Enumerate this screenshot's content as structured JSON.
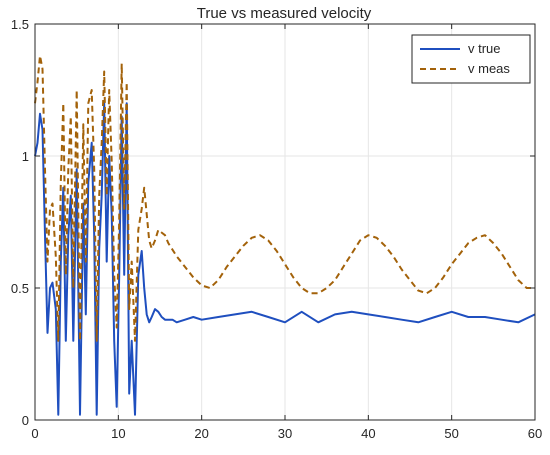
{
  "chart_data": {
    "type": "line",
    "title": "True vs measured velocity",
    "xlabel": "",
    "ylabel": "",
    "xlim": [
      0,
      60
    ],
    "ylim": [
      0,
      1.5
    ],
    "grid": true,
    "legend_position": "top-right",
    "x_ticks": [
      0,
      10,
      20,
      30,
      40,
      50,
      60
    ],
    "x_tick_labels": [
      "0",
      "10",
      "20",
      "30",
      "40",
      "50",
      "60"
    ],
    "y_ticks": [
      0,
      0.5,
      1,
      1.5
    ],
    "y_tick_labels": [
      "0",
      "0.5",
      "1",
      "1.5"
    ],
    "series": [
      {
        "name": "v true",
        "color": "#1f4fbf",
        "style": "solid",
        "x": [
          0,
          0.3,
          0.6,
          0.9,
          1.2,
          1.5,
          1.8,
          2.1,
          2.5,
          2.8,
          3.1,
          3.4,
          3.7,
          4.0,
          4.3,
          4.6,
          5.0,
          5.4,
          5.8,
          6.1,
          6.4,
          6.8,
          7.1,
          7.4,
          7.7,
          8.0,
          8.3,
          8.6,
          8.9,
          9.2,
          9.5,
          9.8,
          10.1,
          10.4,
          10.7,
          11.0,
          11.3,
          11.6,
          12.0,
          12.4,
          12.8,
          13.1,
          13.4,
          13.7,
          14.0,
          14.4,
          14.8,
          15.2,
          15.6,
          16.0,
          16.5,
          17.0,
          18.0,
          19.0,
          20.0,
          22.0,
          24.0,
          26.0,
          28.0,
          30.0,
          32.0,
          34.0,
          36.0,
          38.0,
          40.0,
          42.0,
          44.0,
          46.0,
          48.0,
          50.0,
          52.0,
          54.0,
          56.0,
          58.0,
          60.0
        ],
        "y": [
          1.0,
          1.05,
          1.16,
          1.1,
          0.7,
          0.33,
          0.5,
          0.52,
          0.42,
          0.02,
          0.6,
          0.88,
          0.3,
          0.7,
          0.85,
          0.3,
          0.95,
          0.02,
          0.82,
          0.4,
          0.9,
          1.05,
          0.7,
          0.02,
          0.65,
          0.85,
          1.2,
          0.6,
          1.0,
          0.78,
          0.3,
          0.05,
          0.55,
          1.15,
          0.55,
          1.2,
          0.1,
          0.3,
          0.02,
          0.55,
          0.64,
          0.5,
          0.4,
          0.37,
          0.39,
          0.42,
          0.41,
          0.39,
          0.38,
          0.38,
          0.38,
          0.37,
          0.38,
          0.39,
          0.38,
          0.39,
          0.4,
          0.41,
          0.39,
          0.37,
          0.41,
          0.37,
          0.4,
          0.41,
          0.4,
          0.39,
          0.38,
          0.37,
          0.39,
          0.41,
          0.39,
          0.39,
          0.38,
          0.37,
          0.4
        ]
      },
      {
        "name": "v meas",
        "color": "#a3620a",
        "style": "dashed",
        "x": [
          0,
          0.3,
          0.6,
          0.9,
          1.2,
          1.5,
          1.8,
          2.1,
          2.5,
          2.8,
          3.1,
          3.4,
          3.7,
          4.0,
          4.3,
          4.6,
          5.0,
          5.4,
          5.8,
          6.1,
          6.4,
          6.8,
          7.1,
          7.4,
          7.7,
          8.0,
          8.3,
          8.6,
          8.9,
          9.2,
          9.5,
          9.8,
          10.1,
          10.4,
          10.7,
          11.0,
          11.3,
          11.6,
          12.0,
          12.4,
          12.8,
          13.1,
          13.4,
          13.7,
          14.0,
          14.4,
          14.8,
          15.2,
          15.6,
          16.0,
          17.0,
          18.0,
          19.0,
          20.0,
          21.0,
          22.0,
          23.0,
          24.0,
          25.0,
          26.0,
          27.0,
          28.0,
          29.0,
          30.0,
          31.0,
          32.0,
          33.0,
          34.0,
          35.0,
          36.0,
          37.0,
          38.0,
          39.0,
          40.0,
          41.0,
          42.0,
          43.0,
          44.0,
          45.0,
          46.0,
          47.0,
          48.0,
          49.0,
          50.0,
          51.0,
          52.0,
          53.0,
          54.0,
          55.0,
          56.0,
          57.0,
          58.0,
          59.0,
          60.0
        ],
        "y": [
          1.2,
          1.28,
          1.38,
          1.33,
          0.95,
          0.6,
          0.8,
          0.82,
          0.62,
          0.3,
          0.9,
          1.2,
          0.55,
          0.95,
          1.15,
          0.5,
          1.25,
          0.3,
          1.12,
          0.6,
          1.2,
          1.25,
          0.95,
          0.3,
          0.85,
          1.05,
          1.32,
          0.85,
          1.25,
          0.98,
          0.55,
          0.35,
          0.75,
          1.35,
          0.8,
          1.28,
          0.42,
          0.6,
          0.3,
          0.72,
          0.8,
          0.88,
          0.78,
          0.68,
          0.65,
          0.68,
          0.72,
          0.71,
          0.7,
          0.67,
          0.62,
          0.58,
          0.54,
          0.51,
          0.5,
          0.53,
          0.58,
          0.62,
          0.66,
          0.69,
          0.7,
          0.68,
          0.64,
          0.59,
          0.54,
          0.5,
          0.48,
          0.48,
          0.5,
          0.53,
          0.58,
          0.63,
          0.68,
          0.7,
          0.69,
          0.66,
          0.62,
          0.57,
          0.53,
          0.49,
          0.48,
          0.5,
          0.54,
          0.59,
          0.63,
          0.67,
          0.69,
          0.7,
          0.67,
          0.63,
          0.58,
          0.53,
          0.5,
          0.5
        ]
      }
    ]
  }
}
